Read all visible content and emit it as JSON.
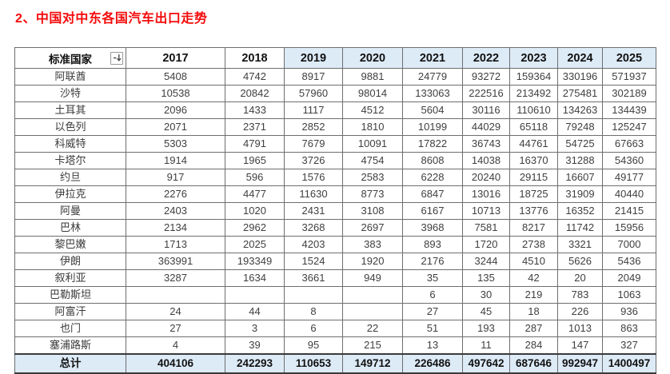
{
  "title": "2、中国对中东各国汽车出口走势",
  "table": {
    "header": {
      "country_label": "标准国家",
      "years": [
        "2017",
        "2018",
        "2019",
        "2020",
        "2021",
        "2022",
        "2023",
        "2024",
        "2025"
      ]
    },
    "rows": [
      {
        "country": "阿联酋",
        "values": [
          "5408",
          "4742",
          "8917",
          "9881",
          "24779",
          "93272",
          "159364",
          "330196",
          "571937"
        ]
      },
      {
        "country": "沙特",
        "values": [
          "10538",
          "20842",
          "57960",
          "98014",
          "133063",
          "222516",
          "213492",
          "275481",
          "302189"
        ]
      },
      {
        "country": "土耳其",
        "values": [
          "2096",
          "1433",
          "1117",
          "4512",
          "5604",
          "30116",
          "110610",
          "134263",
          "134439"
        ]
      },
      {
        "country": "以色列",
        "values": [
          "2071",
          "2371",
          "2852",
          "1810",
          "10199",
          "44029",
          "65118",
          "79248",
          "125247"
        ]
      },
      {
        "country": "科威特",
        "values": [
          "5303",
          "4791",
          "7679",
          "10091",
          "17822",
          "36743",
          "44761",
          "54725",
          "67663"
        ]
      },
      {
        "country": "卡塔尔",
        "values": [
          "1914",
          "1965",
          "3726",
          "4754",
          "8608",
          "14038",
          "16370",
          "31288",
          "54360"
        ]
      },
      {
        "country": "约旦",
        "values": [
          "917",
          "596",
          "1576",
          "2583",
          "6228",
          "20240",
          "29115",
          "16607",
          "49177"
        ]
      },
      {
        "country": "伊拉克",
        "values": [
          "2276",
          "4477",
          "11630",
          "8773",
          "6847",
          "13016",
          "18725",
          "31909",
          "40440"
        ]
      },
      {
        "country": "阿曼",
        "values": [
          "2403",
          "1020",
          "2431",
          "3108",
          "6167",
          "10713",
          "13776",
          "16352",
          "21415"
        ]
      },
      {
        "country": "巴林",
        "values": [
          "2134",
          "2962",
          "3268",
          "2697",
          "3968",
          "7581",
          "8217",
          "11742",
          "15956"
        ]
      },
      {
        "country": "黎巴嫩",
        "values": [
          "1713",
          "2025",
          "4203",
          "383",
          "893",
          "1720",
          "2738",
          "3321",
          "7000"
        ]
      },
      {
        "country": "伊朗",
        "values": [
          "363991",
          "193349",
          "1524",
          "1920",
          "2176",
          "3244",
          "4510",
          "5626",
          "5436"
        ]
      },
      {
        "country": "叙利亚",
        "values": [
          "3287",
          "1634",
          "3661",
          "949",
          "35",
          "135",
          "42",
          "20",
          "2049"
        ]
      },
      {
        "country": "巴勒斯坦",
        "values": [
          "",
          "",
          "",
          "",
          "6",
          "30",
          "219",
          "783",
          "1063"
        ]
      },
      {
        "country": "阿富汗",
        "values": [
          "24",
          "44",
          "8",
          "",
          "27",
          "45",
          "18",
          "226",
          "936"
        ]
      },
      {
        "country": "也门",
        "values": [
          "27",
          "3",
          "6",
          "22",
          "51",
          "193",
          "287",
          "1013",
          "863"
        ]
      },
      {
        "country": "塞浦路斯",
        "values": [
          "4",
          "39",
          "95",
          "215",
          "13",
          "11",
          "284",
          "147",
          "327"
        ]
      }
    ],
    "total": {
      "label": "总计",
      "values": [
        "404106",
        "242293",
        "110653",
        "149712",
        "226486",
        "497642",
        "687646",
        "992947",
        "1400497"
      ]
    }
  },
  "colors": {
    "title_red": "#f40b0b",
    "header_highlight_blue": "#ddebf7",
    "grid_border": "#6e6e6e",
    "data_text": "#3f3f3f"
  }
}
